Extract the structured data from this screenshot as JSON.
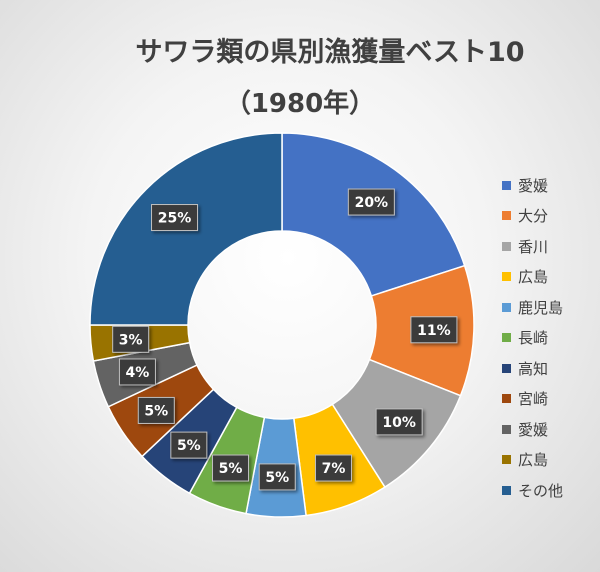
{
  "title_line1": "サワラ類の県別漁獲量ベスト10",
  "title_line2": "（1980年）",
  "chart_data": {
    "type": "pie",
    "donut": true,
    "categories": [
      "愛媛",
      "大分",
      "香川",
      "広島",
      "鹿児島",
      "長崎",
      "高知",
      "宮崎",
      "愛媛",
      "広島",
      "その他"
    ],
    "values": [
      20,
      11,
      10,
      7,
      5,
      5,
      5,
      5,
      4,
      3,
      25
    ],
    "data_labels": [
      "20%",
      "11%",
      "10%",
      "7%",
      "5%",
      "5%",
      "5%",
      "5%",
      "4%",
      "3%",
      "25%"
    ],
    "colors": [
      "#4472C4",
      "#ED7D31",
      "#A5A5A5",
      "#FFC000",
      "#5B9BD5",
      "#70AD47",
      "#264478",
      "#9E480E",
      "#636363",
      "#997300",
      "#255E91"
    ],
    "legend_position": "right"
  }
}
